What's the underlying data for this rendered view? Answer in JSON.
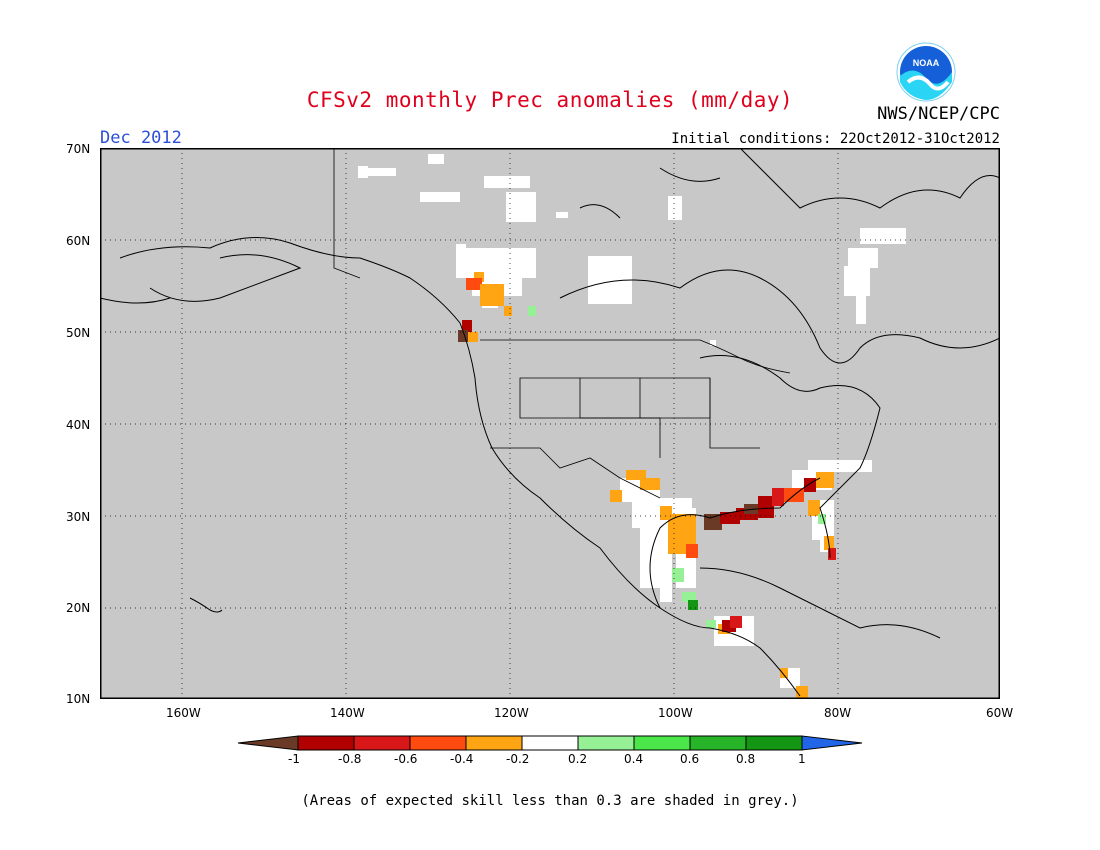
{
  "title": "CFSv2 monthly Prec anomalies (mm/day)",
  "period": "Dec 2012",
  "organization": "NWS/NCEP/CPC",
  "initial_conditions": "Initial conditions: 22Oct2012-31Oct2012",
  "logo_text": "NOAA",
  "map": {
    "projection": "lat-lon",
    "lon_range": [
      -170,
      -60
    ],
    "lat_range": [
      10,
      70
    ],
    "lat_labels": [
      "70N",
      "60N",
      "50N",
      "40N",
      "30N",
      "20N",
      "10N"
    ],
    "lon_labels": [
      "160W",
      "140W",
      "120W",
      "100W",
      "80W",
      "60W"
    ],
    "background_color": "#c8c8c8",
    "grid": "dotted"
  },
  "colorbar": {
    "labels": [
      "-1",
      "-0.8",
      "-0.6",
      "-0.4",
      "-0.2",
      "0.2",
      "0.4",
      "0.6",
      "0.8",
      "1"
    ],
    "colors": [
      "#6b3a26",
      "#b00000",
      "#d81818",
      "#ff4a10",
      "#ffa514",
      "#ffffff",
      "#96f096",
      "#4ae64a",
      "#28b428",
      "#149614",
      "#2266e8"
    ]
  },
  "note": "(Areas of expected skill less than 0.3 are shaded in grey.)"
}
